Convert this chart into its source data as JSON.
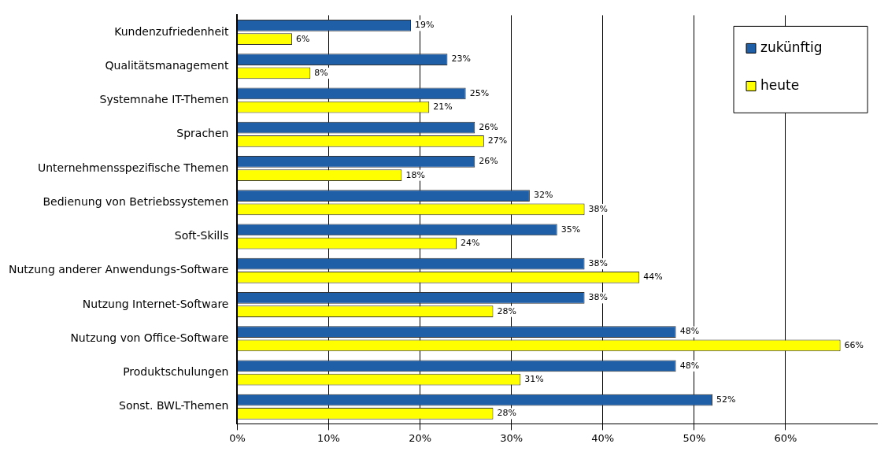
{
  "chart_data": {
    "type": "bar",
    "orientation": "horizontal",
    "categories": [
      "Kundenzufriedenheit",
      "Qualitätsmanagement",
      "Systemnahe IT-Themen",
      "Sprachen",
      "Unternehmensspezifische Themen",
      "Bedienung von Betriebssystemen",
      "Soft-Skills",
      "Nutzung anderer Anwendungs-Software",
      "Nutzung Internet-Software",
      "Nutzung von Office-Software",
      "Produktschulungen",
      "Sonst. BWL-Themen"
    ],
    "series": [
      {
        "name": "zukünftig",
        "color": "#1f5fa8",
        "values": [
          19,
          23,
          25,
          26,
          26,
          32,
          35,
          38,
          38,
          48,
          48,
          52
        ],
        "value_labels": [
          "19%",
          "23%",
          "25%",
          "26%",
          "26%",
          "32%",
          "35%",
          "38%",
          "38%",
          "48%",
          "48%",
          "52%"
        ]
      },
      {
        "name": "heute",
        "color": "#ffff00",
        "values": [
          6,
          8,
          21,
          27,
          18,
          38,
          24,
          44,
          28,
          66,
          31,
          28
        ],
        "value_labels": [
          "6%",
          "8%",
          "21%",
          "27%",
          "18%",
          "38%",
          "24%",
          "44%",
          "28%",
          "66%",
          "31%",
          "28%"
        ]
      }
    ],
    "xlim": [
      0,
      70
    ],
    "xticks": [
      {
        "value": 0,
        "label": "0%"
      },
      {
        "value": 10,
        "label": "10%"
      },
      {
        "value": 20,
        "label": "20%"
      },
      {
        "value": 30,
        "label": "30%"
      },
      {
        "value": 40,
        "label": "40%"
      },
      {
        "value": 50,
        "label": "50%"
      },
      {
        "value": 60,
        "label": "60%"
      }
    ],
    "grid": "x",
    "legend": "top right"
  }
}
